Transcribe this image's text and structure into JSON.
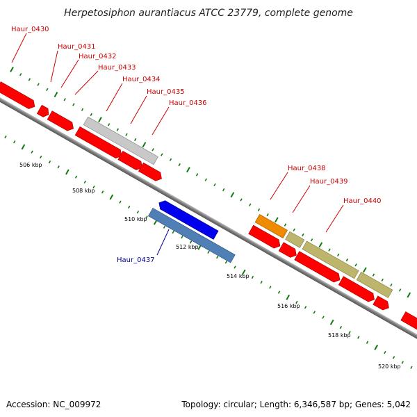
{
  "title": "Herpetosiphon aurantiacus ATCC 23779, complete genome",
  "footer": {
    "accession": "Accession: NC_009972",
    "summary": "Topology: circular; Length: 6,346,587 bp; Genes: 5,042"
  },
  "colors": {
    "forward_red": "#ff0000",
    "hypothetical_grey": "#c8c8c8",
    "reverse_blue": "#0000ee",
    "reverse_steel": "#4f7fb5",
    "orange": "#f08a00",
    "khaki": "#bdb56b",
    "label_red": "#cc0000",
    "label_blue": "#000099",
    "tick_green": "#0f7a0f",
    "backbone": "#8c8c8c"
  },
  "tick_labels": [
    "506 kbp",
    "508 kbp",
    "510 kbp",
    "512 kbp",
    "514 kbp",
    "516 kbp",
    "518 kbp",
    "520 kbp"
  ],
  "genes": [
    {
      "label": "Haur_0430",
      "color": "label_red"
    },
    {
      "label": "Haur_0431",
      "color": "label_red"
    },
    {
      "label": "Haur_0432",
      "color": "label_red"
    },
    {
      "label": "Haur_0433",
      "color": "label_red"
    },
    {
      "label": "Haur_0434",
      "color": "label_red"
    },
    {
      "label": "Haur_0435",
      "color": "label_red"
    },
    {
      "label": "Haur_0436",
      "color": "label_red"
    },
    {
      "label": "Haur_0437",
      "color": "label_blue"
    },
    {
      "label": "Haur_0438",
      "color": "label_red"
    },
    {
      "label": "Haur_0439",
      "color": "label_red"
    },
    {
      "label": "Haur_0440",
      "color": "label_red"
    }
  ]
}
